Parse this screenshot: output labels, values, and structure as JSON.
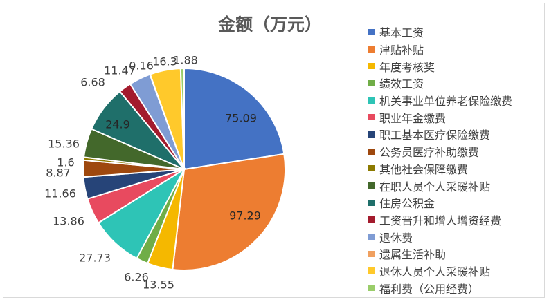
{
  "chart_data": {
    "type": "pie",
    "title": "金额（万元）",
    "legend_position": "right",
    "slices": [
      {
        "label": "基本工资",
        "value": 75.09,
        "value_text": "75.09",
        "color": "#4472C4"
      },
      {
        "label": "津贴补贴",
        "value": 97.29,
        "value_text": "97.29",
        "color": "#ED7D31"
      },
      {
        "label": "年度考核奖",
        "value": 13.55,
        "value_text": "13.55",
        "color": "#F5B800"
      },
      {
        "label": "绩效工资",
        "value": 6.26,
        "value_text": "6.26",
        "color": "#70AD47"
      },
      {
        "label": "机关事业单位养老保险缴费",
        "value": 27.73,
        "value_text": "27.73",
        "color": "#2EC4B6"
      },
      {
        "label": "职业年金缴费",
        "value": 13.86,
        "value_text": "13.86",
        "color": "#E84A5F"
      },
      {
        "label": "职工基本医疗保险缴费",
        "value": 11.66,
        "value_text": "11.66",
        "color": "#264478"
      },
      {
        "label": "公务员医疗补助缴费",
        "value": 8.87,
        "value_text": "8.87",
        "color": "#9E480E"
      },
      {
        "label": "其他社会保障缴费",
        "value": 1.6,
        "value_text": "1.6",
        "color": "#8C7A00"
      },
      {
        "label": "在职人员个人采暖补贴",
        "value": 15.36,
        "value_text": "15.36",
        "color": "#43682B"
      },
      {
        "label": "住房公积金",
        "value": 24.9,
        "value_text": "24.9",
        "color": "#1F6F6A"
      },
      {
        "label": "工资晋升和增人增资经费",
        "value": 6.68,
        "value_text": "6.68",
        "color": "#A31B2D"
      },
      {
        "label": "退休费",
        "value": 11.47,
        "value_text": "11.47",
        "color": "#7F9CD4"
      },
      {
        "label": "遗属生活补助",
        "value": 0.16,
        "value_text": "0.16",
        "color": "#F0A060"
      },
      {
        "label": "退休人员个人采暖补贴",
        "value": 16.3,
        "value_text": "16.3",
        "color": "#FFC92B"
      },
      {
        "label": "福利费（公用经费）",
        "value": 1.88,
        "value_text": "1.88",
        "color": "#9ACD6A"
      }
    ]
  }
}
